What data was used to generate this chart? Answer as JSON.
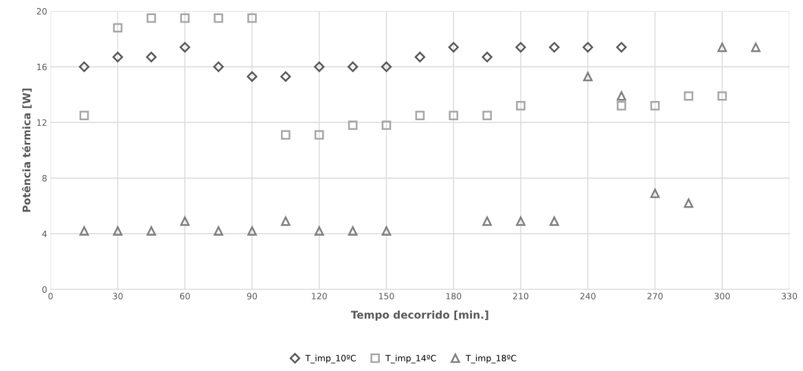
{
  "chart_data": {
    "type": "scatter",
    "xlabel": "Tempo decorrido [min.]",
    "ylabel": "Potência térmica [W]",
    "x": [
      15,
      30,
      45,
      60,
      75,
      90,
      105,
      120,
      135,
      150,
      165,
      180,
      195,
      210,
      225,
      240,
      255,
      270,
      285,
      300,
      315
    ],
    "series": [
      {
        "name": "T_imp_10ºC",
        "color": "#595959",
        "marker": "diamond",
        "values": [
          16.0,
          16.7,
          16.7,
          17.4,
          16.0,
          15.3,
          15.3,
          16.0,
          16.0,
          16.0,
          16.7,
          17.4,
          16.7,
          17.4,
          17.4,
          17.4,
          17.4,
          null,
          null,
          null,
          null
        ]
      },
      {
        "name": "T_imp_14ºC",
        "color": "#a6a6a6",
        "marker": "square",
        "values": [
          12.5,
          18.8,
          19.5,
          19.5,
          19.5,
          19.5,
          11.1,
          11.1,
          11.8,
          11.8,
          12.5,
          12.5,
          12.5,
          13.2,
          null,
          null,
          13.2,
          13.2,
          13.9,
          13.9,
          null
        ]
      },
      {
        "name": "T_imp_18ºC",
        "color": "#808080",
        "marker": "triangle",
        "values": [
          4.2,
          4.2,
          4.2,
          4.9,
          4.2,
          4.2,
          4.9,
          4.2,
          4.2,
          4.2,
          null,
          null,
          4.9,
          4.9,
          4.9,
          15.3,
          13.9,
          6.9,
          6.2,
          17.4,
          17.4
        ]
      }
    ],
    "xlim": [
      0,
      330
    ],
    "xticks": [
      0,
      30,
      60,
      90,
      120,
      150,
      180,
      210,
      240,
      270,
      300,
      330
    ],
    "ylim": [
      0,
      20
    ],
    "yticks": [
      0,
      4,
      8,
      12,
      16,
      20
    ],
    "grid": true,
    "legend": "bottom"
  }
}
